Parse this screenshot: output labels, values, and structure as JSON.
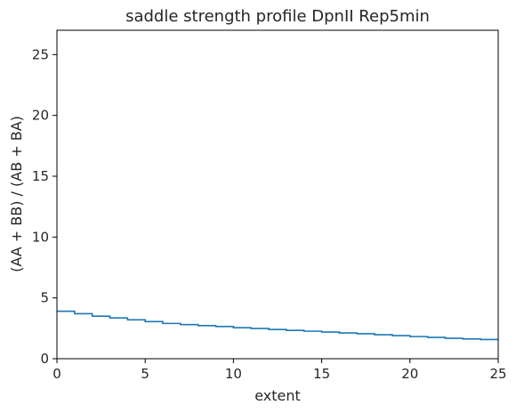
{
  "chart_data": {
    "type": "line",
    "drawstyle": "steps-post",
    "title": "saddle strength profile DpnII Rep5min",
    "xlabel": "extent",
    "ylabel": "(AA + BB) / (AB + BA)",
    "xlim": [
      0,
      25
    ],
    "ylim": [
      0,
      27
    ],
    "xticks": [
      0,
      5,
      10,
      15,
      20,
      25
    ],
    "yticks": [
      0,
      5,
      10,
      15,
      20,
      25
    ],
    "grid": false,
    "line_color": "#1f77b4",
    "series": [
      {
        "x": [
          0,
          1,
          2,
          3,
          4,
          5,
          6,
          7,
          8,
          9,
          10,
          11,
          12,
          13,
          14,
          15,
          16,
          17,
          18,
          19,
          20,
          21,
          22,
          23,
          24,
          25
        ],
        "values": [
          3.9,
          3.7,
          3.5,
          3.35,
          3.2,
          3.05,
          2.9,
          2.8,
          2.72,
          2.65,
          2.55,
          2.48,
          2.4,
          2.33,
          2.26,
          2.19,
          2.12,
          2.05,
          1.97,
          1.9,
          1.82,
          1.75,
          1.68,
          1.62,
          1.58,
          1.58
        ]
      }
    ]
  }
}
